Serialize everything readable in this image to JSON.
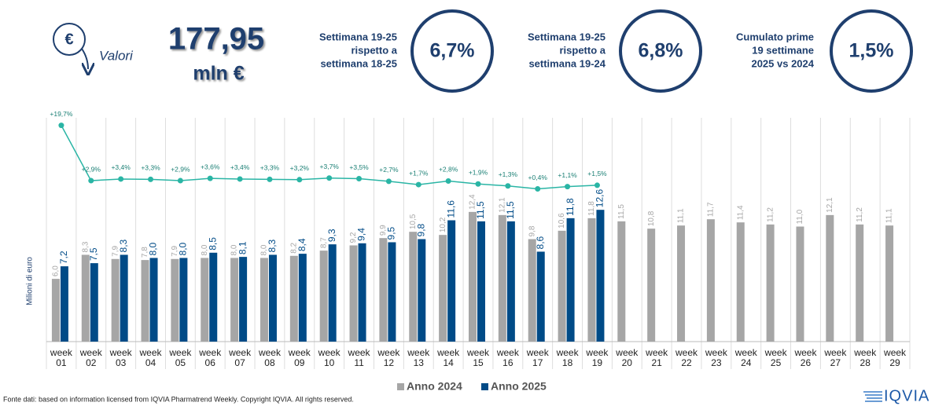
{
  "header": {
    "icon_symbol": "€",
    "label": "Valori",
    "total": "177,95",
    "unit": "mln €",
    "kpis": [
      {
        "lines": [
          "Settimana 19-25",
          "rispetto a",
          "settimana 18-25"
        ],
        "value": "6,7%"
      },
      {
        "lines": [
          "Settimana 19-25",
          "rispetto a",
          "settimana 19-24"
        ],
        "value": "6,8%"
      },
      {
        "lines": [
          "Cumulato prime",
          "19 settimane",
          "2025 vs 2024"
        ],
        "value": "1,5%"
      }
    ]
  },
  "chart_data": {
    "type": "bar",
    "y_label": "Milioni di euro",
    "categories": [
      "week 01",
      "week 02",
      "week 03",
      "week 04",
      "week 05",
      "week 06",
      "week 07",
      "week 08",
      "week 09",
      "week 10",
      "week 11",
      "week 12",
      "week 13",
      "week 14",
      "week 15",
      "week 16",
      "week 17",
      "week 18",
      "week 19",
      "week 20",
      "week 21",
      "week 22",
      "week 23",
      "week 24",
      "week 25",
      "week 26",
      "week 27",
      "week 28",
      "week 29"
    ],
    "ylim": [
      0,
      21.4
    ],
    "y2lim": [
      -46,
      22
    ],
    "series": [
      {
        "name": "Anno 2024",
        "type": "bar",
        "color": "#a6a6a6",
        "values": [
          6.0,
          8.3,
          7.9,
          7.8,
          7.9,
          8.0,
          8.0,
          8.0,
          8.2,
          8.7,
          9.2,
          9.9,
          10.5,
          10.2,
          12.4,
          12.1,
          9.8,
          10.6,
          11.8,
          11.5,
          10.8,
          11.1,
          11.7,
          11.4,
          11.2,
          11.0,
          12.1,
          11.2,
          11.1
        ],
        "value_labels": [
          "6,0",
          "8,3",
          "7,9",
          "7,8",
          "7,9",
          "8,0",
          "8,0",
          "8,0",
          "8,2",
          "8,7",
          "9,2",
          "9,9",
          "10,5",
          "10,2",
          "12,4",
          "12,1",
          "9,8",
          "10,6",
          "11,8",
          "11,5",
          "10,8",
          "11,1",
          "11,7",
          "11,4",
          "11,2",
          "11,0",
          "12,1",
          "11,2",
          "11,1"
        ]
      },
      {
        "name": "Anno 2025",
        "type": "bar",
        "color": "#004b87",
        "values": [
          7.2,
          7.5,
          8.3,
          8.0,
          8.0,
          8.5,
          8.1,
          8.3,
          8.4,
          9.3,
          9.4,
          9.5,
          9.8,
          11.6,
          11.5,
          11.5,
          8.6,
          11.8,
          12.6,
          null,
          null,
          null,
          null,
          null,
          null,
          null,
          null,
          null,
          null
        ],
        "value_labels": [
          "7,2",
          "7,5",
          "8,3",
          "8,0",
          "8,0",
          "8,5",
          "8,1",
          "8,3",
          "8,4",
          "9,3",
          "9,4",
          "9,5",
          "9,8",
          "11,6",
          "11,5",
          "11,5",
          "8,6",
          "11,8",
          "12,6",
          null,
          null,
          null,
          null,
          null,
          null,
          null,
          null,
          null,
          null
        ]
      },
      {
        "type": "line",
        "axis": "y2",
        "color": "#2ab5a5",
        "values": [
          19.7,
          2.9,
          3.4,
          3.3,
          2.9,
          3.6,
          3.4,
          3.3,
          3.2,
          3.7,
          3.5,
          2.7,
          1.7,
          2.8,
          1.9,
          1.3,
          0.4,
          1.1,
          1.5,
          null,
          null,
          null,
          null,
          null,
          null,
          null,
          null,
          null,
          null
        ],
        "value_labels": [
          "+19,7%",
          "+2,9%",
          "+3,4%",
          "+3,3%",
          "+2,9%",
          "+3,6%",
          "+3,4%",
          "+3,3%",
          "+3,2%",
          "+3,7%",
          "+3,5%",
          "+2,7%",
          "+1,7%",
          "+2,8%",
          "+1,9%",
          "+1,3%",
          "+0,4%",
          "+1,1%",
          "+1,5%",
          null,
          null,
          null,
          null,
          null,
          null,
          null,
          null,
          null,
          null
        ]
      }
    ],
    "legend": "bottom"
  },
  "footer": {
    "source": "Fonte dati: based on information licensed from IQVIA Pharmatrend Weekly. Copyright IQVIA. All rights reserved.",
    "logo": "IQVIA"
  }
}
